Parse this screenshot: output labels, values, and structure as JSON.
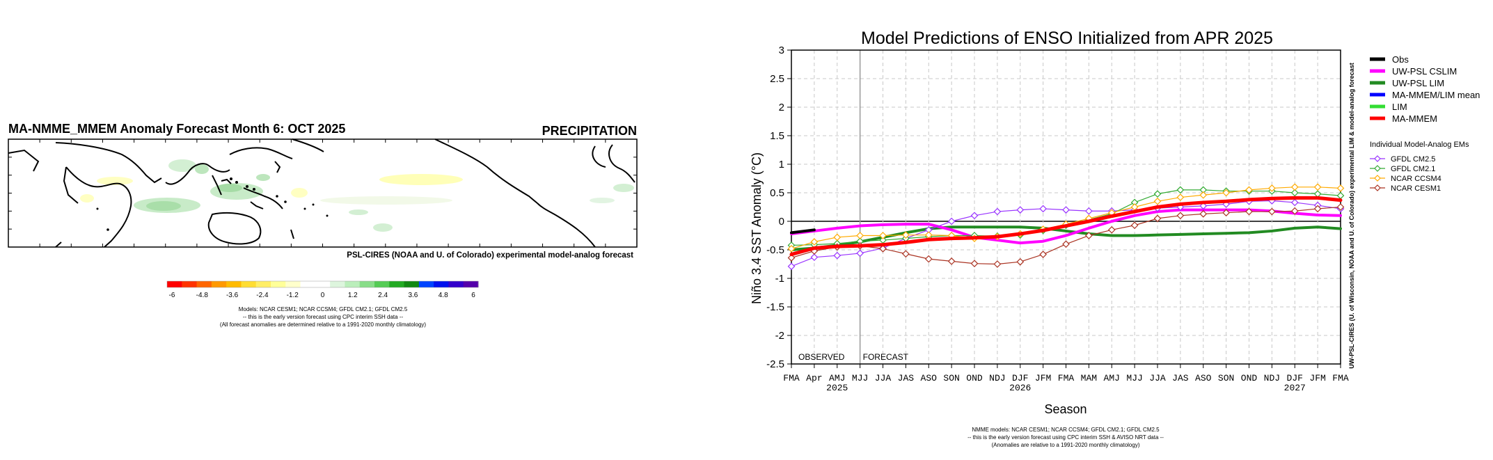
{
  "map_panel": {
    "title": "MA-NMME_MMEM Anomaly Forecast Month 6: OCT 2025",
    "variable": "PRECIPITATION",
    "credit": "PSL-CIRES (NOAA and U. of Colorado) experimental model-analog forecast",
    "colorbar": {
      "tick_labels": [
        "-6",
        "-4.8",
        "-3.6",
        "-2.4",
        "-1.2",
        "0",
        "1.2",
        "2.4",
        "3.6",
        "4.8",
        "6"
      ],
      "colors": [
        "#ff0000",
        "#ff3300",
        "#ff6600",
        "#ff9900",
        "#ffbb00",
        "#ffdd33",
        "#ffee66",
        "#ffff99",
        "#ffffcc",
        "#ffffff",
        "#ffffff",
        "#ddf5dd",
        "#bbeebb",
        "#88dd88",
        "#55cc55",
        "#22aa22",
        "#118811",
        "#0044ff",
        "#0011ee",
        "#3300cc",
        "#5500aa"
      ]
    },
    "notes": [
      "Models: NCAR CESM1; NCAR CCSM4; GFDL CM2.1; GFDL CM2.5",
      "-- this is the early version forecast using CPC interim SSH data --",
      "(All forecast anomalies are determined relative to a 1991-2020 monthly climatology)"
    ]
  },
  "chart_data": {
    "type": "line",
    "title": "Model Predictions of ENSO Initialized from APR 2025",
    "xlabel": "Season",
    "ylabel": "Niño 3.4 SST Anomaly (°C)",
    "ylim": [
      -2.5,
      3
    ],
    "yticks": [
      "-2.5",
      "-2",
      "-1.5",
      "-1",
      "-0.5",
      "0",
      "0.5",
      "1",
      "1.5",
      "2",
      "2.5",
      "3"
    ],
    "categories": [
      "FMA",
      "Apr",
      "AMJ",
      "MJJ",
      "JJA",
      "JAS",
      "ASO",
      "SON",
      "OND",
      "NDJ",
      "DJF",
      "JFM",
      "FMA",
      "MAM",
      "AMJ",
      "MJJ",
      "JJA",
      "JAS",
      "ASO",
      "SON",
      "OND",
      "NDJ",
      "DJF",
      "JFM",
      "FMA"
    ],
    "year_labels": [
      {
        "index": 2,
        "label": "2025"
      },
      {
        "index": 10,
        "label": "2026"
      },
      {
        "index": 22,
        "label": "2027"
      }
    ],
    "region_labels": {
      "observed": "OBSERVED",
      "forecast": "FORECAST"
    },
    "forecast_start_index": 3,
    "grid": true,
    "legend_position": "right",
    "side_credit": "UW-PSL-CIRES (U. of Wisconsin, NOAA and U. of Colorado) experimental LIM & model-analog forecast",
    "series": [
      {
        "name": "Obs",
        "color": "#000000",
        "width": 4,
        "x": [
          0,
          1
        ],
        "values": [
          -0.2,
          -0.15
        ]
      },
      {
        "name": "UW-PSL CSLIM",
        "color": "#ff00ff",
        "width": 4,
        "x": [
          0,
          1,
          2,
          3,
          4,
          5,
          6,
          7,
          8,
          9,
          10,
          11,
          12,
          13,
          14,
          15,
          16,
          17,
          18,
          19,
          20,
          21,
          22,
          23,
          24
        ],
        "values": [
          -0.22,
          -0.17,
          -0.12,
          -0.08,
          -0.06,
          -0.05,
          -0.05,
          -0.15,
          -0.28,
          -0.33,
          -0.38,
          -0.35,
          -0.25,
          -0.12,
          0.0,
          0.1,
          0.17,
          0.2,
          0.2,
          0.2,
          0.2,
          0.18,
          0.14,
          0.11,
          0.1
        ]
      },
      {
        "name": "UW-PSL LIM",
        "color": "#228b22",
        "width": 4,
        "x": [
          0,
          1,
          2,
          3,
          4,
          5,
          6,
          7,
          8,
          9,
          10,
          11,
          12,
          13,
          14,
          15,
          16,
          17,
          18,
          19,
          20,
          21,
          22,
          23,
          24
        ],
        "values": [
          -0.5,
          -0.47,
          -0.42,
          -0.36,
          -0.28,
          -0.2,
          -0.13,
          -0.1,
          -0.1,
          -0.1,
          -0.1,
          -0.12,
          -0.17,
          -0.22,
          -0.25,
          -0.25,
          -0.24,
          -0.23,
          -0.22,
          -0.21,
          -0.2,
          -0.17,
          -0.12,
          -0.1,
          -0.13
        ]
      },
      {
        "name": "MA-MMEM/LIM mean",
        "color": "#0000ff",
        "width": 4,
        "x": [],
        "values": []
      },
      {
        "name": "LIM",
        "color": "#33dd33",
        "width": 4,
        "x": [],
        "values": []
      },
      {
        "name": "MA-MMEM",
        "color": "#ff0000",
        "width": 5,
        "x": [
          0,
          1,
          2,
          3,
          4,
          5,
          6,
          7,
          8,
          9,
          10,
          11,
          12,
          13,
          14,
          15,
          16,
          17,
          18,
          19,
          20,
          21,
          22,
          23,
          24
        ],
        "values": [
          -0.58,
          -0.47,
          -0.44,
          -0.43,
          -0.41,
          -0.37,
          -0.32,
          -0.3,
          -0.29,
          -0.27,
          -0.22,
          -0.16,
          -0.08,
          0.0,
          0.09,
          0.17,
          0.25,
          0.3,
          0.33,
          0.35,
          0.38,
          0.4,
          0.41,
          0.41,
          0.37
        ]
      }
    ],
    "individual_legend_title": "Individual Model-Analog EMs",
    "individual_series": [
      {
        "name": "GFDL CM2.5",
        "color": "#9933ff",
        "values": [
          -0.79,
          -0.63,
          -0.6,
          -0.56,
          -0.47,
          -0.3,
          -0.15,
          0.0,
          0.1,
          0.17,
          0.2,
          0.22,
          0.2,
          0.18,
          0.18,
          0.2,
          0.23,
          0.25,
          0.27,
          0.3,
          0.35,
          0.36,
          0.33,
          0.28,
          0.22
        ]
      },
      {
        "name": "GFDL CM2.1",
        "color": "#33aa33",
        "values": [
          -0.42,
          -0.41,
          -0.39,
          -0.35,
          -0.33,
          -0.3,
          -0.27,
          -0.25,
          -0.25,
          -0.26,
          -0.24,
          -0.16,
          -0.07,
          0.03,
          0.13,
          0.33,
          0.48,
          0.55,
          0.55,
          0.53,
          0.53,
          0.53,
          0.5,
          0.48,
          0.45
        ]
      },
      {
        "name": "NCAR CCSM4",
        "color": "#ffaa00",
        "values": [
          -0.48,
          -0.36,
          -0.28,
          -0.25,
          -0.25,
          -0.24,
          -0.24,
          -0.25,
          -0.3,
          -0.27,
          -0.22,
          -0.14,
          -0.05,
          0.05,
          0.15,
          0.25,
          0.35,
          0.42,
          0.46,
          0.5,
          0.55,
          0.58,
          0.6,
          0.6,
          0.58
        ]
      },
      {
        "name": "NCAR CESM1",
        "color": "#aa3322",
        "values": [
          -0.64,
          -0.52,
          -0.45,
          -0.43,
          -0.48,
          -0.57,
          -0.66,
          -0.7,
          -0.74,
          -0.75,
          -0.71,
          -0.58,
          -0.4,
          -0.25,
          -0.15,
          -0.07,
          0.05,
          0.1,
          0.13,
          0.15,
          0.17,
          0.17,
          0.18,
          0.22,
          0.25
        ]
      }
    ],
    "footnotes": [
      "NMME models: NCAR CESM1; NCAR CCSM4; GFDL CM2.1; GFDL CM2.5",
      "-- this is the early version forecast using CPC interim SSH & AVISO NRT data --",
      "(Anomalies are relative to a 1991-2020 monthly climatology)"
    ]
  }
}
